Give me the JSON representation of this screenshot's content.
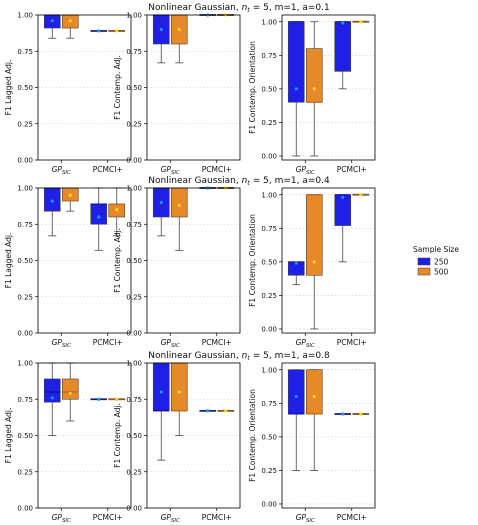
{
  "colors": {
    "250": "#1f1fe6",
    "500": "#e5892a",
    "mean_250": "#1e90ff",
    "mean_500": "#ffd21e",
    "grid": "#cccccc",
    "whisker": "#444444"
  },
  "legend": {
    "title": "Sample Size",
    "entries": [
      {
        "label": "250",
        "color": "#1f1fe6"
      },
      {
        "label": "500",
        "color": "#e5892a"
      }
    ],
    "placement": "right"
  },
  "row_titles": [
    "Nonlinear Gaussian, n_t = 5, m=1, a=0.1",
    "Nonlinear Gaussian, n_t = 5, m=1, a=0.4",
    "Nonlinear Gaussian, n_t = 5, m=1, a=0.8"
  ],
  "chart_data": [
    {
      "type": "box",
      "row": 0,
      "col": 0,
      "ylabel": "F1 Lagged Adj.",
      "ylim": [
        0,
        1
      ],
      "yticks": [
        0.0,
        0.25,
        0.5,
        0.75,
        1.0
      ],
      "grid": "y-dotted",
      "categories": [
        "GP_SIC",
        "PCMCI+"
      ],
      "boxes": [
        {
          "cat": 0,
          "series": "250",
          "whislo": 0.84,
          "q1": 0.91,
          "med": 1.0,
          "q3": 1.0,
          "whishi": 1.0,
          "mean": 0.96
        },
        {
          "cat": 0,
          "series": "500",
          "whislo": 0.84,
          "q1": 0.91,
          "med": 1.0,
          "q3": 1.0,
          "whishi": 1.0,
          "mean": 0.96
        },
        {
          "cat": 1,
          "series": "250",
          "whislo": 0.89,
          "q1": 0.89,
          "med": 0.89,
          "q3": 0.89,
          "whishi": 0.89,
          "mean": 0.89
        },
        {
          "cat": 1,
          "series": "500",
          "whislo": 0.89,
          "q1": 0.89,
          "med": 0.89,
          "q3": 0.89,
          "whishi": 0.89,
          "mean": 0.89
        }
      ]
    },
    {
      "type": "box",
      "row": 0,
      "col": 1,
      "ylabel": "F1 Contemp. Adj.",
      "ylim": [
        0,
        1
      ],
      "yticks": [
        0.0,
        0.25,
        0.5,
        0.75,
        1.0
      ],
      "grid": "y-dotted",
      "categories": [
        "GP_SIC",
        "PCMCI+"
      ],
      "boxes": [
        {
          "cat": 0,
          "series": "250",
          "whislo": 0.67,
          "q1": 0.8,
          "med": 1.0,
          "q3": 1.0,
          "whishi": 1.0,
          "mean": 0.9
        },
        {
          "cat": 0,
          "series": "500",
          "whislo": 0.67,
          "q1": 0.8,
          "med": 1.0,
          "q3": 1.0,
          "whishi": 1.0,
          "mean": 0.9
        },
        {
          "cat": 1,
          "series": "250",
          "whislo": 1.0,
          "q1": 1.0,
          "med": 1.0,
          "q3": 1.0,
          "whishi": 1.0,
          "mean": 1.0
        },
        {
          "cat": 1,
          "series": "500",
          "whislo": 1.0,
          "q1": 1.0,
          "med": 1.0,
          "q3": 1.0,
          "whishi": 1.0,
          "mean": 1.0
        }
      ]
    },
    {
      "type": "box",
      "row": 0,
      "col": 2,
      "ylabel": "F1 Contemp. Orientation",
      "ylim": [
        -0.03,
        1.05
      ],
      "yticks": [
        0.0,
        0.25,
        0.5,
        0.75,
        1.0
      ],
      "grid": "y-dotted",
      "categories": [
        "GP_SIC",
        "PCMCI+"
      ],
      "boxes": [
        {
          "cat": 0,
          "series": "250",
          "whislo": 0.0,
          "q1": 0.4,
          "med": 1.0,
          "q3": 1.0,
          "whishi": 1.0,
          "mean": 0.5
        },
        {
          "cat": 0,
          "series": "500",
          "whislo": 0.0,
          "q1": 0.4,
          "med": 0.4,
          "q3": 0.8,
          "whishi": 1.0,
          "mean": 0.5
        },
        {
          "cat": 1,
          "series": "250",
          "whislo": 0.5,
          "q1": 0.63,
          "med": 1.0,
          "q3": 1.0,
          "whishi": 1.0,
          "mean": 0.99
        },
        {
          "cat": 1,
          "series": "500",
          "whislo": 1.0,
          "q1": 1.0,
          "med": 1.0,
          "q3": 1.0,
          "whishi": 1.0,
          "mean": 1.0
        }
      ]
    },
    {
      "type": "box",
      "row": 1,
      "col": 0,
      "ylabel": "F1 Lagged Adj.",
      "ylim": [
        0,
        1
      ],
      "yticks": [
        0.0,
        0.25,
        0.5,
        0.75,
        1.0
      ],
      "grid": "y-dotted",
      "categories": [
        "GP_SIC",
        "PCMCI+"
      ],
      "boxes": [
        {
          "cat": 0,
          "series": "250",
          "whislo": 0.67,
          "q1": 0.84,
          "med": 1.0,
          "q3": 1.0,
          "whishi": 1.0,
          "mean": 0.91
        },
        {
          "cat": 0,
          "series": "500",
          "whislo": 0.84,
          "q1": 0.91,
          "med": 1.0,
          "q3": 1.0,
          "whishi": 1.0,
          "mean": 0.95
        },
        {
          "cat": 1,
          "series": "250",
          "whislo": 0.57,
          "q1": 0.75,
          "med": 0.89,
          "q3": 0.89,
          "whishi": 1.0,
          "mean": 0.8
        },
        {
          "cat": 1,
          "series": "500",
          "whislo": 0.67,
          "q1": 0.8,
          "med": 0.89,
          "q3": 0.89,
          "whishi": 1.0,
          "mean": 0.85
        }
      ]
    },
    {
      "type": "box",
      "row": 1,
      "col": 1,
      "ylabel": "F1 Contemp. Adj.",
      "ylim": [
        0,
        1
      ],
      "yticks": [
        0.0,
        0.25,
        0.5,
        0.75,
        1.0
      ],
      "grid": "y-dotted",
      "categories": [
        "GP_SIC",
        "PCMCI+"
      ],
      "boxes": [
        {
          "cat": 0,
          "series": "250",
          "whislo": 0.67,
          "q1": 0.8,
          "med": 1.0,
          "q3": 1.0,
          "whishi": 1.0,
          "mean": 0.9
        },
        {
          "cat": 0,
          "series": "500",
          "whislo": 0.57,
          "q1": 0.8,
          "med": 1.0,
          "q3": 1.0,
          "whishi": 1.0,
          "mean": 0.88
        },
        {
          "cat": 1,
          "series": "250",
          "whislo": 1.0,
          "q1": 1.0,
          "med": 1.0,
          "q3": 1.0,
          "whishi": 1.0,
          "mean": 1.0
        },
        {
          "cat": 1,
          "series": "500",
          "whislo": 1.0,
          "q1": 1.0,
          "med": 1.0,
          "q3": 1.0,
          "whishi": 1.0,
          "mean": 1.0
        }
      ]
    },
    {
      "type": "box",
      "row": 1,
      "col": 2,
      "ylabel": "F1 Contemp. Orientation",
      "ylim": [
        -0.03,
        1.05
      ],
      "yticks": [
        0.0,
        0.25,
        0.5,
        0.75,
        1.0
      ],
      "grid": "y-dotted",
      "categories": [
        "GP_SIC",
        "PCMCI+"
      ],
      "boxes": [
        {
          "cat": 0,
          "series": "250",
          "whislo": 0.33,
          "q1": 0.4,
          "med": 0.5,
          "q3": 0.5,
          "whishi": 0.5,
          "mean": 0.49
        },
        {
          "cat": 0,
          "series": "500",
          "whislo": 0.0,
          "q1": 0.4,
          "med": 1.0,
          "q3": 1.0,
          "whishi": 1.0,
          "mean": 0.5
        },
        {
          "cat": 1,
          "series": "250",
          "whislo": 0.5,
          "q1": 0.77,
          "med": 1.0,
          "q3": 1.0,
          "whishi": 1.0,
          "mean": 0.98
        },
        {
          "cat": 1,
          "series": "500",
          "whislo": 1.0,
          "q1": 1.0,
          "med": 1.0,
          "q3": 1.0,
          "whishi": 1.0,
          "mean": 1.0
        }
      ]
    },
    {
      "type": "box",
      "row": 2,
      "col": 0,
      "ylabel": "F1 Lagged Adj.",
      "ylim": [
        0,
        1
      ],
      "yticks": [
        0.0,
        0.25,
        0.5,
        0.75,
        1.0
      ],
      "grid": "y-dotted",
      "categories": [
        "GP_SIC",
        "PCMCI+"
      ],
      "boxes": [
        {
          "cat": 0,
          "series": "250",
          "whislo": 0.5,
          "q1": 0.73,
          "med": 0.8,
          "q3": 0.89,
          "whishi": 1.0,
          "mean": 0.76
        },
        {
          "cat": 0,
          "series": "500",
          "whislo": 0.6,
          "q1": 0.75,
          "med": 0.8,
          "q3": 0.89,
          "whishi": 1.0,
          "mean": 0.79
        },
        {
          "cat": 1,
          "series": "250",
          "whislo": 0.75,
          "q1": 0.75,
          "med": 0.75,
          "q3": 0.75,
          "whishi": 0.75,
          "mean": 0.75
        },
        {
          "cat": 1,
          "series": "500",
          "whislo": 0.75,
          "q1": 0.75,
          "med": 0.75,
          "q3": 0.75,
          "whishi": 0.75,
          "mean": 0.75
        }
      ]
    },
    {
      "type": "box",
      "row": 2,
      "col": 1,
      "ylabel": "F1 Contemp. Adj.",
      "ylim": [
        0,
        1
      ],
      "yticks": [
        0.0,
        0.25,
        0.5,
        0.75,
        1.0
      ],
      "grid": "y-dotted",
      "categories": [
        "GP_SIC",
        "PCMCI+"
      ],
      "boxes": [
        {
          "cat": 0,
          "series": "250",
          "whislo": 0.33,
          "q1": 0.67,
          "med": 0.67,
          "q3": 1.0,
          "whishi": 1.0,
          "mean": 0.8
        },
        {
          "cat": 0,
          "series": "500",
          "whislo": 0.5,
          "q1": 0.67,
          "med": 0.67,
          "q3": 1.0,
          "whishi": 1.0,
          "mean": 0.8
        },
        {
          "cat": 1,
          "series": "250",
          "whislo": 0.67,
          "q1": 0.67,
          "med": 0.67,
          "q3": 0.67,
          "whishi": 0.67,
          "mean": 0.67
        },
        {
          "cat": 1,
          "series": "500",
          "whislo": 0.67,
          "q1": 0.67,
          "med": 0.67,
          "q3": 0.67,
          "whishi": 0.67,
          "mean": 0.67
        }
      ]
    },
    {
      "type": "box",
      "row": 2,
      "col": 2,
      "ylabel": "F1 Contemp. Orientation",
      "ylim": [
        -0.03,
        1.05
      ],
      "yticks": [
        0.0,
        0.25,
        0.5,
        0.75,
        1.0
      ],
      "grid": "y-dotted",
      "categories": [
        "GP_SIC",
        "PCMCI+"
      ],
      "boxes": [
        {
          "cat": 0,
          "series": "250",
          "whislo": 0.25,
          "q1": 0.67,
          "med": 0.67,
          "q3": 1.0,
          "whishi": 1.0,
          "mean": 0.8
        },
        {
          "cat": 0,
          "series": "500",
          "whislo": 0.25,
          "q1": 0.67,
          "med": 0.67,
          "q3": 1.0,
          "whishi": 1.0,
          "mean": 0.8
        },
        {
          "cat": 1,
          "series": "250",
          "whislo": 0.67,
          "q1": 0.67,
          "med": 0.67,
          "q3": 0.67,
          "whishi": 0.67,
          "mean": 0.67
        },
        {
          "cat": 1,
          "series": "500",
          "whislo": 0.67,
          "q1": 0.67,
          "med": 0.67,
          "q3": 0.67,
          "whishi": 0.67,
          "mean": 0.67
        }
      ]
    }
  ]
}
